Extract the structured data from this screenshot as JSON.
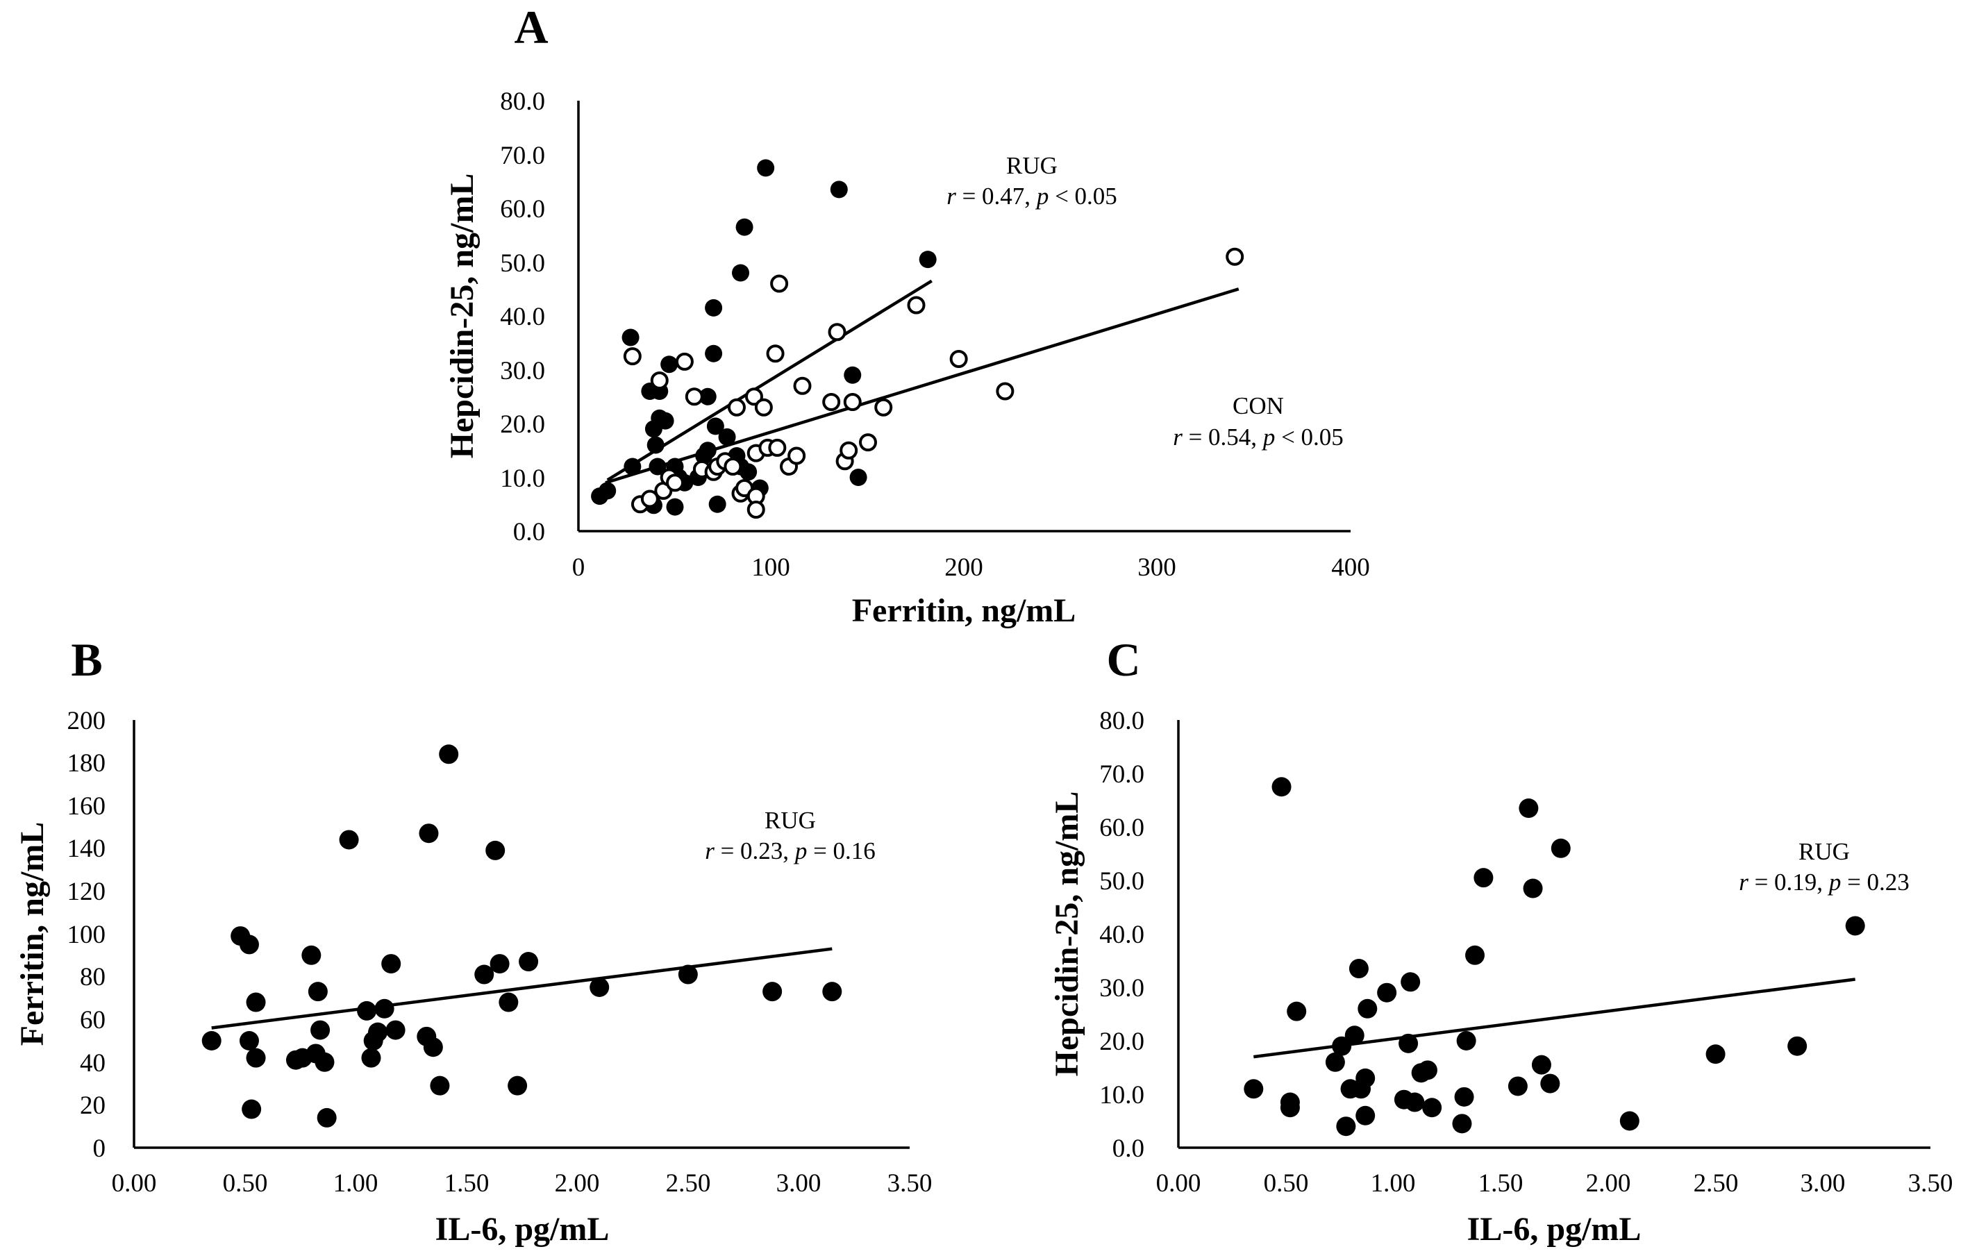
{
  "colors": {
    "background": "#ffffff",
    "ink": "#000000"
  },
  "chart_data": [
    {
      "panel": "A",
      "type": "scatter",
      "xlabel": "Ferritin, ng/mL",
      "ylabel": "Hepcidin-25, ng/mL",
      "xlim": [
        0,
        400
      ],
      "ylim": [
        0,
        80
      ],
      "x_ticks": [
        "0",
        "100",
        "200",
        "300",
        "400"
      ],
      "y_ticks": [
        "0.0",
        "10.0",
        "20.0",
        "30.0",
        "40.0",
        "50.0",
        "60.0",
        "70.0",
        "80.0"
      ],
      "grid": false,
      "series": [
        {
          "name": "RUG",
          "marker": "filled-circle",
          "points": [
            [
              11,
              6.5
            ],
            [
              15,
              7.5
            ],
            [
              27,
              36
            ],
            [
              28,
              12
            ],
            [
              37,
              26
            ],
            [
              39,
              4.8
            ],
            [
              39,
              19
            ],
            [
              40,
              16
            ],
            [
              41,
              12
            ],
            [
              42,
              21
            ],
            [
              42,
              26
            ],
            [
              45,
              20.5
            ],
            [
              47,
              31
            ],
            [
              50,
              4.5
            ],
            [
              50,
              12
            ],
            [
              52,
              10
            ],
            [
              55,
              9
            ],
            [
              62,
              10
            ],
            [
              65,
              14
            ],
            [
              67,
              25
            ],
            [
              67,
              15
            ],
            [
              70,
              33
            ],
            [
              71,
              19.5
            ],
            [
              70,
              41.5
            ],
            [
              72,
              5
            ],
            [
              77,
              17.5
            ],
            [
              82,
              14
            ],
            [
              84,
              12
            ],
            [
              84,
              48
            ],
            [
              86,
              56.5
            ],
            [
              88,
              11
            ],
            [
              94,
              8
            ],
            [
              97,
              67.5
            ],
            [
              135,
              63.5
            ],
            [
              142,
              29
            ],
            [
              145,
              10
            ],
            [
              181,
              50.5
            ]
          ],
          "trendline": {
            "x": [
              15,
              183
            ],
            "y": [
              9.5,
              46.5
            ]
          },
          "annotation": {
            "label": "RUG",
            "stats_prefix": "r = 0.47, ",
            "stats_p": "p",
            "stats_suffix": " < 0.05"
          }
        },
        {
          "name": "CON",
          "marker": "open-circle",
          "points": [
            [
              28,
              32.5
            ],
            [
              32,
              5
            ],
            [
              37,
              6
            ],
            [
              42,
              28
            ],
            [
              44,
              7.5
            ],
            [
              47,
              10
            ],
            [
              50,
              9
            ],
            [
              55,
              31.5
            ],
            [
              60,
              25
            ],
            [
              64,
              11.5
            ],
            [
              70,
              11
            ],
            [
              72,
              12
            ],
            [
              76,
              13
            ],
            [
              80,
              12
            ],
            [
              82,
              23
            ],
            [
              84,
              7
            ],
            [
              86,
              8
            ],
            [
              91,
              25
            ],
            [
              92,
              6.5
            ],
            [
              92,
              4
            ],
            [
              92,
              14.5
            ],
            [
              96,
              23
            ],
            [
              98,
              15.5
            ],
            [
              102,
              33
            ],
            [
              103,
              15.5
            ],
            [
              104,
              46
            ],
            [
              109,
              12
            ],
            [
              113,
              14
            ],
            [
              116,
              27
            ],
            [
              131,
              24
            ],
            [
              134,
              37
            ],
            [
              138,
              13
            ],
            [
              140,
              15
            ],
            [
              142,
              24
            ],
            [
              150,
              16.5
            ],
            [
              158,
              23
            ],
            [
              175,
              42
            ],
            [
              197,
              32
            ],
            [
              221,
              26
            ],
            [
              340,
              51
            ]
          ],
          "trendline": {
            "x": [
              14,
              342
            ],
            "y": [
              9,
              45
            ]
          },
          "annotation": {
            "label": "CON",
            "stats_prefix": "r = 0.54, ",
            "stats_p": "p",
            "stats_suffix": " < 0.05"
          }
        }
      ]
    },
    {
      "panel": "B",
      "type": "scatter",
      "xlabel": "IL-6, pg/mL",
      "ylabel": "Ferritin, ng/mL",
      "xlim": [
        0,
        3.5
      ],
      "ylim": [
        0,
        200
      ],
      "x_ticks": [
        "0.00",
        "0.50",
        "1.00",
        "1.50",
        "2.00",
        "2.50",
        "3.00",
        "3.50"
      ],
      "y_ticks": [
        "0",
        "20",
        "40",
        "60",
        "80",
        "100",
        "120",
        "140",
        "160",
        "180",
        "200"
      ],
      "grid": false,
      "series": [
        {
          "name": "RUG",
          "marker": "filled-circle",
          "points": [
            [
              0.35,
              50
            ],
            [
              0.48,
              99
            ],
            [
              0.52,
              95
            ],
            [
              0.52,
              50
            ],
            [
              0.53,
              18
            ],
            [
              0.55,
              42
            ],
            [
              0.55,
              68
            ],
            [
              0.73,
              41
            ],
            [
              0.76,
              42
            ],
            [
              0.8,
              90
            ],
            [
              0.82,
              44
            ],
            [
              0.83,
              73
            ],
            [
              0.84,
              55
            ],
            [
              0.86,
              40
            ],
            [
              0.87,
              14
            ],
            [
              0.97,
              144
            ],
            [
              1.05,
              64
            ],
            [
              1.07,
              42
            ],
            [
              1.08,
              50
            ],
            [
              1.1,
              54
            ],
            [
              1.13,
              65
            ],
            [
              1.16,
              86
            ],
            [
              1.18,
              55
            ],
            [
              1.32,
              52
            ],
            [
              1.33,
              147
            ],
            [
              1.35,
              47
            ],
            [
              1.38,
              29
            ],
            [
              1.42,
              184
            ],
            [
              1.58,
              81
            ],
            [
              1.63,
              139
            ],
            [
              1.65,
              86
            ],
            [
              1.69,
              68
            ],
            [
              1.73,
              29
            ],
            [
              1.78,
              87
            ],
            [
              2.1,
              75
            ],
            [
              2.5,
              81
            ],
            [
              2.88,
              73
            ],
            [
              3.15,
              73
            ]
          ],
          "trendline": {
            "x": [
              0.35,
              3.15
            ],
            "y": [
              56,
              93
            ]
          },
          "annotation": {
            "label": "RUG",
            "stats_prefix": "r = 0.23, ",
            "stats_p": "p",
            "stats_suffix": " = 0.16"
          }
        }
      ]
    },
    {
      "panel": "C",
      "type": "scatter",
      "xlabel": "IL-6, pg/mL",
      "ylabel": "Hepcidin-25, ng/mL",
      "xlim": [
        0,
        3.5
      ],
      "ylim": [
        0,
        80
      ],
      "x_ticks": [
        "0.00",
        "0.50",
        "1.00",
        "1.50",
        "2.00",
        "2.50",
        "3.00",
        "3.50"
      ],
      "y_ticks": [
        "0.0",
        "10.0",
        "20.0",
        "30.0",
        "40.0",
        "50.0",
        "60.0",
        "70.0",
        "80.0"
      ],
      "grid": false,
      "series": [
        {
          "name": "RUG",
          "marker": "filled-circle",
          "points": [
            [
              0.35,
              11
            ],
            [
              0.48,
              67.5
            ],
            [
              0.52,
              8.5
            ],
            [
              0.52,
              7.5
            ],
            [
              0.55,
              25.5
            ],
            [
              0.73,
              16
            ],
            [
              0.76,
              19
            ],
            [
              0.78,
              4
            ],
            [
              0.8,
              11
            ],
            [
              0.82,
              21
            ],
            [
              0.84,
              33.5
            ],
            [
              0.85,
              11
            ],
            [
              0.87,
              13
            ],
            [
              0.87,
              6
            ],
            [
              0.88,
              26
            ],
            [
              0.97,
              29
            ],
            [
              1.05,
              9
            ],
            [
              1.07,
              19.5
            ],
            [
              1.08,
              31
            ],
            [
              1.1,
              8.5
            ],
            [
              1.13,
              14
            ],
            [
              1.16,
              14.5
            ],
            [
              1.18,
              7.5
            ],
            [
              1.33,
              9.5
            ],
            [
              1.34,
              20
            ],
            [
              1.32,
              4.5
            ],
            [
              1.38,
              36
            ],
            [
              1.42,
              50.5
            ],
            [
              1.58,
              11.5
            ],
            [
              1.63,
              63.5
            ],
            [
              1.65,
              48.5
            ],
            [
              1.69,
              15.5
            ],
            [
              1.73,
              12
            ],
            [
              1.78,
              56
            ],
            [
              2.1,
              5
            ],
            [
              2.5,
              17.5
            ],
            [
              2.88,
              19
            ],
            [
              3.15,
              41.5
            ]
          ],
          "trendline": {
            "x": [
              0.35,
              3.15
            ],
            "y": [
              17,
              31.5
            ]
          },
          "annotation": {
            "label": "RUG",
            "stats_prefix": "r = 0.19, ",
            "stats_p": "p",
            "stats_suffix": " =  0.23"
          }
        }
      ]
    }
  ]
}
